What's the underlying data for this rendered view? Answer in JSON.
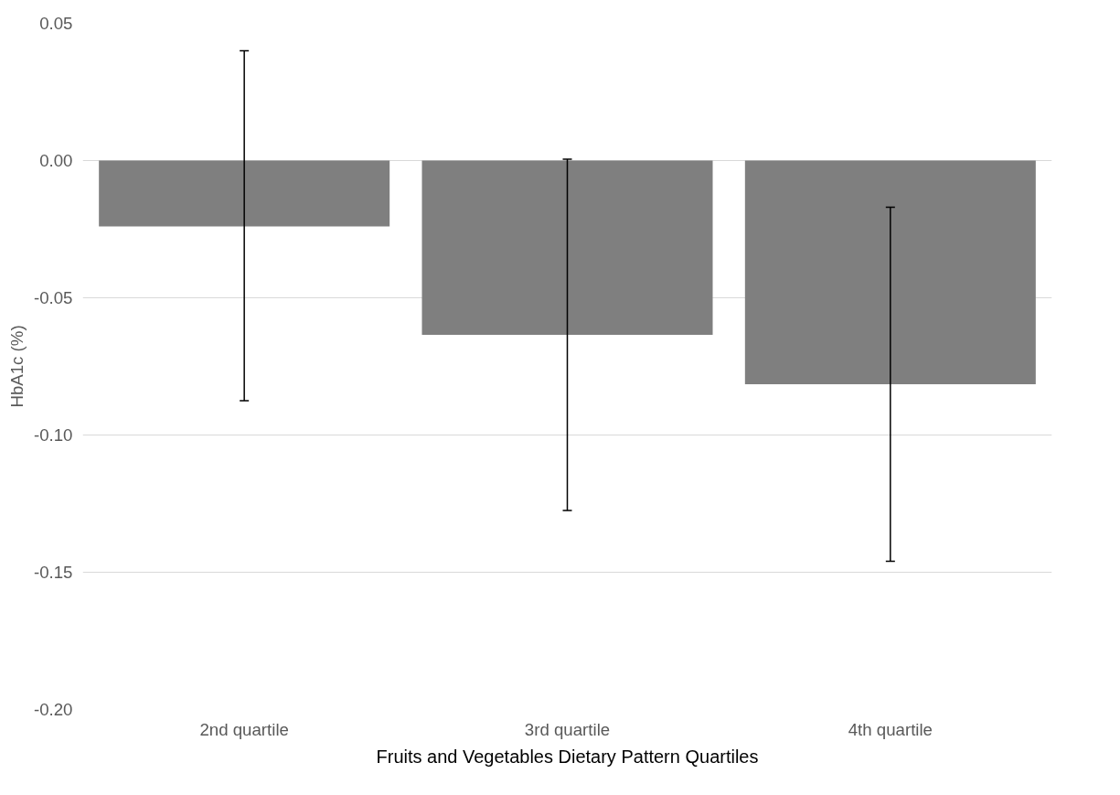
{
  "chart_data": {
    "type": "bar",
    "xlabel": "Fruits and Vegetables Dietary Pattern Quartiles",
    "ylabel": "HbA1c (%)",
    "categories": [
      "2nd quartile",
      "3rd quartile",
      "4th quartile"
    ],
    "values": [
      -0.024,
      -0.0635,
      -0.0815
    ],
    "errors": [
      [
        -0.0875,
        0.04
      ],
      [
        -0.1275,
        0.0005
      ],
      [
        -0.146,
        -0.017
      ]
    ],
    "color": "#7f7f7f",
    "ylim": [
      -0.2,
      0.05
    ],
    "yticks": [
      {
        "value": -0.2,
        "label": "-0.20"
      },
      {
        "value": -0.15,
        "label": "-0.15"
      },
      {
        "value": -0.1,
        "label": "-0.10"
      },
      {
        "value": -0.05,
        "label": "-0.05"
      },
      {
        "value": 0,
        "label": "0.00"
      },
      {
        "value": 0.05,
        "label": "0.05"
      }
    ],
    "grid": "y"
  }
}
